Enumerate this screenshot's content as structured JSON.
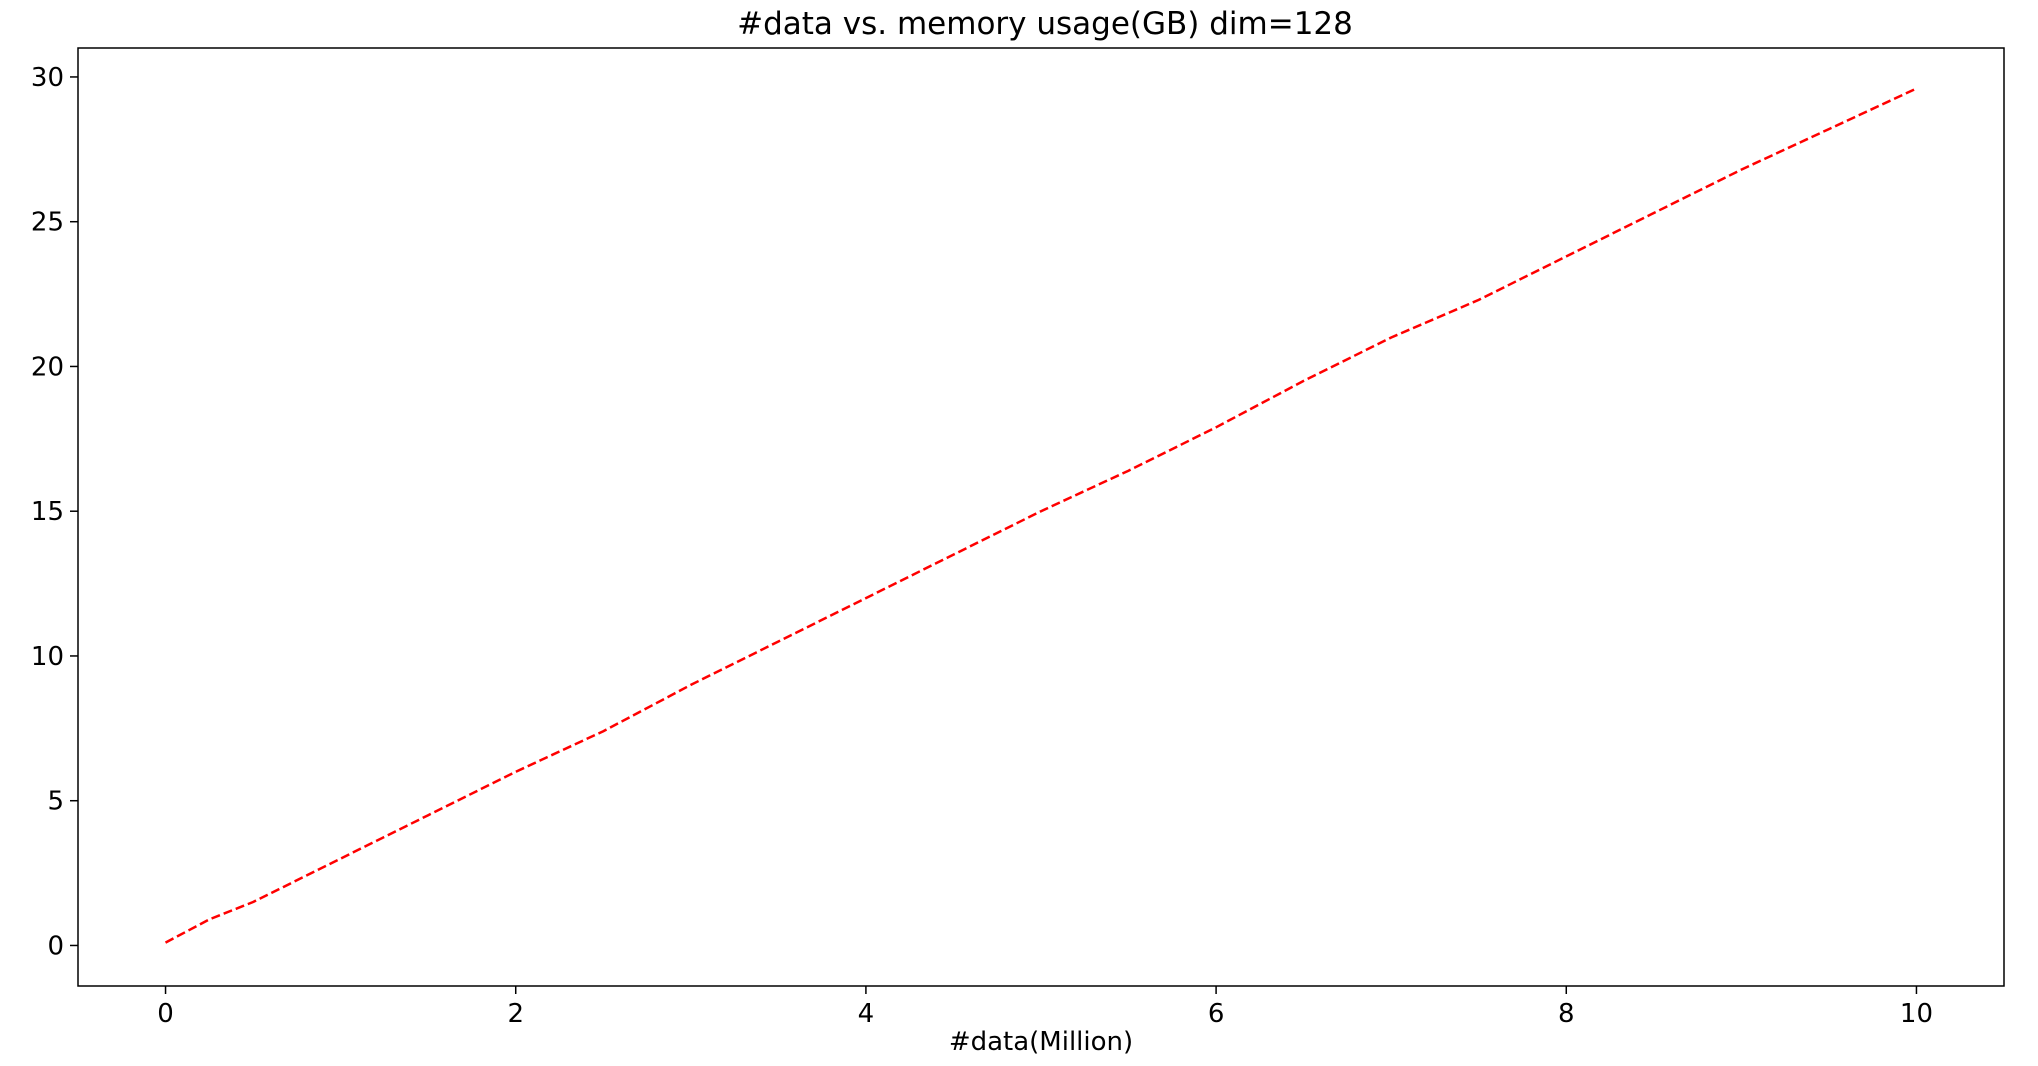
{
  "chart_data": {
    "type": "line",
    "title": "#data vs. memory usage(GB) dim=128",
    "xlabel": "#data(Million)",
    "ylabel": "",
    "xlim": [
      -0.5,
      10.5
    ],
    "ylim": [
      -1.4,
      31.0
    ],
    "xticks": [
      0,
      2,
      4,
      6,
      8,
      10
    ],
    "yticks": [
      0,
      5,
      10,
      15,
      20,
      25,
      30
    ],
    "grid": false,
    "series": [
      {
        "color": "#ff0000",
        "line_style": "dashed",
        "x": [
          0,
          0.25,
          0.5,
          1,
          1.5,
          2,
          2.5,
          3,
          3.5,
          4,
          4.5,
          5,
          5.5,
          6,
          6.5,
          7,
          7.5,
          8,
          8.5,
          9,
          9.5,
          10
        ],
        "y": [
          0.1,
          0.9,
          1.5,
          3.0,
          4.5,
          6.0,
          7.4,
          9.0,
          10.5,
          12.0,
          13.5,
          15.0,
          16.4,
          17.9,
          19.5,
          21.0,
          22.3,
          23.8,
          25.3,
          26.8,
          28.2,
          29.6
        ]
      }
    ]
  }
}
